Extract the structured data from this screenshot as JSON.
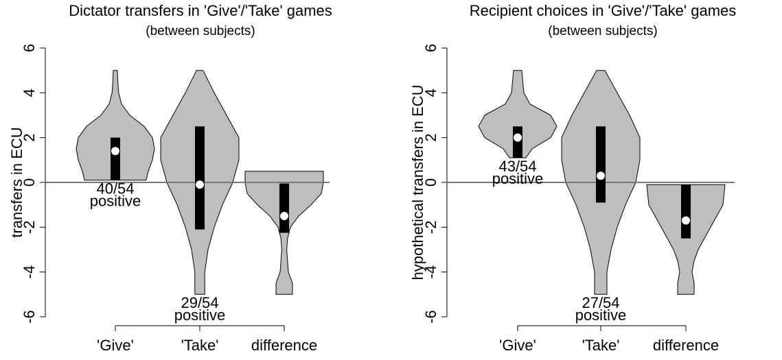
{
  "chart_data": [
    {
      "type": "violin",
      "title": "Dictator transfers in 'Give'/'Take' games",
      "subtitle": "(between subjects)",
      "ylabel": "transfers in ECU",
      "categories": [
        "'Give'",
        "'Take'",
        "difference"
      ],
      "ylim": [
        -6,
        6
      ],
      "yticks": [
        -6,
        -4,
        -2,
        0,
        2,
        4,
        6
      ],
      "hline": 0,
      "fill": "#bebebe",
      "box_color": "#000000",
      "median_color": "#ffffff",
      "violins": [
        {
          "y": [
            5,
            4.5,
            4,
            3.5,
            3,
            2.5,
            2,
            1.5,
            1,
            0.5,
            0.1
          ],
          "width": [
            0.05,
            0.06,
            0.08,
            0.15,
            0.35,
            0.7,
            0.9,
            0.95,
            0.9,
            0.8,
            0.75
          ]
        },
        {
          "y": [
            5,
            4,
            3,
            2,
            1,
            0,
            -1,
            -2,
            -3,
            -4,
            -5
          ],
          "width": [
            0.08,
            0.35,
            0.65,
            0.95,
            0.95,
            0.8,
            0.55,
            0.35,
            0.2,
            0.12,
            0.12
          ]
        },
        {
          "y": [
            0.5,
            0,
            -0.5,
            -1,
            -1.5,
            -2,
            -2.5,
            -3,
            -4,
            -4.5,
            -5
          ],
          "width": [
            0.95,
            0.95,
            0.9,
            0.65,
            0.35,
            0.15,
            0.08,
            0.06,
            0.1,
            0.2,
            0.2
          ]
        }
      ],
      "q1": [
        0.1,
        -2.1,
        -2.25
      ],
      "q3": [
        2.0,
        2.5,
        -0.05
      ],
      "median": [
        1.4,
        -0.1,
        -1.5
      ],
      "annotations": [
        [
          "40/54",
          "positive"
        ],
        [
          "29/54",
          "positive"
        ],
        null
      ]
    },
    {
      "type": "violin",
      "title": "Recipient choices in 'Give'/'Take' games",
      "subtitle": "(between subjects)",
      "ylabel": "hypothetical transfers in ECU",
      "categories": [
        "'Give'",
        "'Take'",
        "difference"
      ],
      "ylim": [
        -6,
        6
      ],
      "yticks": [
        -6,
        -4,
        -2,
        0,
        2,
        4,
        6
      ],
      "hline": 0,
      "fill": "#bebebe",
      "box_color": "#000000",
      "median_color": "#ffffff",
      "violins": [
        {
          "y": [
            5,
            4,
            3.5,
            3,
            2.5,
            2,
            1.5,
            1.1
          ],
          "width": [
            0.1,
            0.15,
            0.3,
            0.8,
            0.95,
            0.8,
            0.35,
            0.2
          ]
        },
        {
          "y": [
            5,
            4,
            3,
            2,
            1,
            0,
            -1,
            -2,
            -3,
            -4,
            -5
          ],
          "width": [
            0.1,
            0.4,
            0.7,
            0.95,
            0.95,
            0.85,
            0.6,
            0.4,
            0.25,
            0.15,
            0.15
          ]
        },
        {
          "y": [
            -0.1,
            -1,
            -2,
            -3,
            -3.5,
            -4,
            -4.5,
            -5
          ],
          "width": [
            0.95,
            0.9,
            0.6,
            0.3,
            0.2,
            0.15,
            0.2,
            0.2
          ]
        }
      ],
      "q1": [
        1.1,
        -0.9,
        -2.5
      ],
      "q3": [
        2.5,
        2.5,
        -0.1
      ],
      "median": [
        2.0,
        0.3,
        -1.7
      ],
      "annotations": [
        [
          "43/54",
          "positive"
        ],
        [
          "27/54",
          "positive"
        ],
        null
      ]
    }
  ]
}
